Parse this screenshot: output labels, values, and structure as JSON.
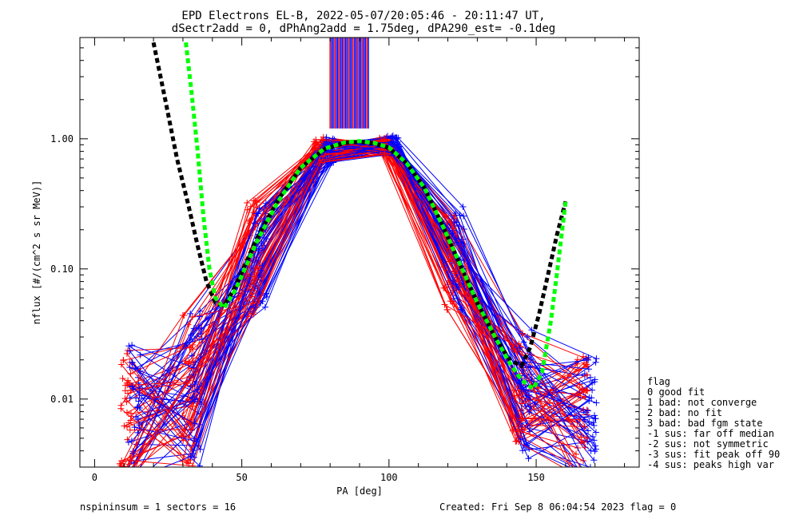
{
  "chart_data": {
    "type": "line",
    "title": "EPD Electrons EL-B, 2022-05-07/20:05:46 - 20:11:47 UT,",
    "subtitle": "dSectr2add = 0, dPhAng2add = 1.75deg, dPA290_est=  -0.1deg",
    "xlabel": "PA [deg]",
    "ylabel": "nflux [#/(cm^2 s sr MeV)]",
    "xlim": [
      -5,
      185
    ],
    "ylim": [
      0.003,
      6
    ],
    "yscale": "log",
    "grid": false,
    "x_ticks": [
      {
        "value": 0,
        "label": "0"
      },
      {
        "value": 50,
        "label": "50"
      },
      {
        "value": 100,
        "label": "100"
      },
      {
        "value": 150,
        "label": "150"
      }
    ],
    "y_ticks": [
      {
        "value": 1.0,
        "label": "1.00"
      },
      {
        "value": 0.1,
        "label": "0.10"
      },
      {
        "value": 0.01,
        "label": "0.01"
      }
    ],
    "series": [
      {
        "color": "#000000",
        "style": "dashed",
        "x": [
          20,
          24,
          28,
          32,
          35,
          38,
          41,
          44,
          48,
          55,
          62,
          70,
          78,
          85,
          90,
          95,
          100,
          106,
          112,
          118,
          124,
          130,
          136,
          141,
          145,
          148,
          151,
          154,
          157,
          160
        ],
        "y": [
          5.5,
          2.0,
          0.7,
          0.3,
          0.15,
          0.08,
          0.055,
          0.052,
          0.075,
          0.17,
          0.33,
          0.6,
          0.83,
          0.93,
          0.95,
          0.92,
          0.85,
          0.65,
          0.42,
          0.22,
          0.11,
          0.055,
          0.03,
          0.02,
          0.018,
          0.025,
          0.045,
          0.09,
          0.18,
          0.33
        ]
      },
      {
        "color": "#00ff00",
        "style": "dashed",
        "x": [
          31,
          33,
          35,
          37,
          39,
          41,
          44,
          48,
          55,
          62,
          70,
          78,
          85,
          90,
          95,
          100,
          106,
          112,
          118,
          124,
          130,
          136,
          141,
          145,
          149,
          152,
          155,
          157,
          160
        ],
        "y": [
          5.5,
          2.2,
          0.8,
          0.25,
          0.1,
          0.06,
          0.05,
          0.07,
          0.16,
          0.32,
          0.6,
          0.84,
          0.94,
          0.96,
          0.93,
          0.86,
          0.65,
          0.42,
          0.22,
          0.11,
          0.055,
          0.03,
          0.019,
          0.014,
          0.012,
          0.016,
          0.04,
          0.09,
          0.33
        ]
      }
    ],
    "curves": {
      "count_per_color": 44,
      "colors": [
        "#ff0000",
        "#0000ff"
      ],
      "x": [
        12,
        33,
        55,
        78,
        100,
        122,
        145,
        167
      ],
      "median_y": [
        0.008,
        0.012,
        0.12,
        0.82,
        0.88,
        0.12,
        0.011,
        0.007
      ]
    },
    "spikes": {
      "color_a": "#ff0000",
      "color_b": "#0000ff",
      "x_from": 80,
      "x_to": 93,
      "y_low": 1.2
    },
    "annotations": {
      "left": "nspininsum =  1  sectors = 16",
      "right": "Created: Fri Sep  8 06:04:54 2023   flag = 0"
    },
    "legend": {
      "position": "right-bottom",
      "title": "flag",
      "entries": [
        " 0 good fit",
        " 1 bad: not converge",
        " 2 bad: no fit",
        " 3 bad: bad fgm state",
        "-1 sus: far off median",
        "-2 sus: not symmetric",
        "-3 sus: fit peak off 90",
        "-4 sus: peaks high var"
      ]
    }
  }
}
